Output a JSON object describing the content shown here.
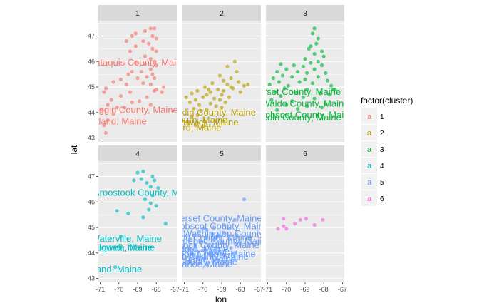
{
  "chart_data": {
    "type": "scatter",
    "xlabel": "lon",
    "ylabel": "lat",
    "xlim": [
      -71.1,
      -66.9
    ],
    "ylim": [
      42.85,
      47.6
    ],
    "x_ticks": [
      -71,
      -70,
      -69,
      -68,
      -67
    ],
    "y_ticks": [
      43,
      44,
      45,
      46,
      47
    ],
    "facet_rows": 2,
    "facet_cols": 3,
    "legend": {
      "title": "factor(cluster)",
      "position": "right",
      "glyph": "a",
      "entries": [
        "1",
        "2",
        "3",
        "4",
        "5",
        "6"
      ]
    },
    "colors": {
      "1": "#F8766D",
      "2": "#B79F00",
      "3": "#00BA38",
      "4": "#00BFC4",
      "5": "#619CFF",
      "6": "#F564E3"
    },
    "facets": [
      {
        "label": "1",
        "points": [
          [
            -68.3,
            47.3
          ],
          [
            -68.1,
            47.3
          ],
          [
            -68.6,
            47.2
          ],
          [
            -69.1,
            47.1
          ],
          [
            -69.3,
            47.0
          ],
          [
            -68.2,
            47.0
          ],
          [
            -68.0,
            46.9
          ],
          [
            -68.7,
            46.8
          ],
          [
            -68.4,
            46.7
          ],
          [
            -69.1,
            46.6
          ],
          [
            -68.2,
            46.5
          ],
          [
            -68.0,
            46.4
          ],
          [
            -69.4,
            46.4
          ],
          [
            -68.6,
            46.2
          ],
          [
            -68.3,
            46.1
          ],
          [
            -68.1,
            46.0
          ],
          [
            -69.1,
            45.95
          ],
          [
            -68.6,
            45.9
          ],
          [
            -68.0,
            45.85
          ],
          [
            -68.3,
            45.7
          ],
          [
            -68.8,
            45.6
          ],
          [
            -69.3,
            45.6
          ],
          [
            -68.2,
            45.5
          ],
          [
            -68.5,
            45.4
          ],
          [
            -69.5,
            45.5
          ],
          [
            -68.1,
            45.35
          ],
          [
            -69.0,
            45.35
          ],
          [
            -69.9,
            45.3
          ],
          [
            -70.3,
            45.2
          ],
          [
            -68.7,
            45.15
          ],
          [
            -68.3,
            45.1
          ],
          [
            -69.6,
            45.1
          ],
          [
            -70.7,
            44.95
          ],
          [
            -68.1,
            44.85
          ],
          [
            -69.4,
            44.8
          ],
          [
            -70.8,
            44.8
          ],
          [
            -67.7,
            44.8
          ],
          [
            -69.9,
            44.65
          ],
          [
            -68.5,
            44.6
          ],
          [
            -70.4,
            44.5
          ],
          [
            -68.9,
            44.45
          ],
          [
            -69.3,
            44.4
          ],
          [
            -70.6,
            44.3
          ],
          [
            -70.1,
            44.2
          ],
          [
            -69.7,
            44.2
          ],
          [
            -68.3,
            44.3
          ],
          [
            -70.3,
            43.95
          ],
          [
            -70.6,
            43.7
          ],
          [
            -70.8,
            43.5
          ],
          [
            -70.7,
            43.2
          ],
          [
            -68.0,
            44.9
          ],
          [
            -67.6,
            45.0
          ],
          [
            -69.6,
            46.8
          ],
          [
            -70.9,
            44.1
          ]
        ],
        "labels": [
          {
            "text": "Piscataquis County, Maine",
            "x": -69.3,
            "y": 45.95
          },
          {
            "text": "Androscoggin County, Maine",
            "x": -70.0,
            "y": 44.1
          },
          {
            "text": "Portland, Maine",
            "x": -70.25,
            "y": 43.65
          }
        ]
      },
      {
        "label": "2",
        "points": [
          [
            -68.3,
            46.0
          ],
          [
            -68.7,
            45.8
          ],
          [
            -68.2,
            45.6
          ],
          [
            -69.1,
            45.45
          ],
          [
            -68.5,
            45.35
          ],
          [
            -68.9,
            45.25
          ],
          [
            -68.1,
            45.2
          ],
          [
            -69.5,
            45.15
          ],
          [
            -68.7,
            45.1
          ],
          [
            -67.8,
            45.05
          ],
          [
            -69.9,
            45.0
          ],
          [
            -68.4,
            44.95
          ],
          [
            -69.2,
            44.9
          ],
          [
            -70.3,
            44.85
          ],
          [
            -68.9,
            44.85
          ],
          [
            -69.6,
            44.8
          ],
          [
            -68.0,
            44.8
          ],
          [
            -70.6,
            44.75
          ],
          [
            -69.0,
            44.7
          ],
          [
            -69.8,
            44.7
          ],
          [
            -70.0,
            44.6
          ],
          [
            -68.6,
            44.6
          ],
          [
            -69.4,
            44.55
          ],
          [
            -70.4,
            44.5
          ],
          [
            -69.1,
            44.5
          ],
          [
            -70.7,
            44.4
          ],
          [
            -68.8,
            44.4
          ],
          [
            -69.6,
            44.35
          ],
          [
            -70.2,
            44.3
          ],
          [
            -69.3,
            44.25
          ],
          [
            -70.5,
            44.15
          ],
          [
            -69.0,
            44.2
          ],
          [
            -69.8,
            44.1
          ],
          [
            -70.1,
            44.05
          ],
          [
            -70.3,
            43.9
          ],
          [
            -70.6,
            43.85
          ],
          [
            -70.8,
            43.6
          ],
          [
            -70.4,
            43.5
          ],
          [
            -70.0,
            43.45
          ],
          [
            -69.7,
            44.9
          ],
          [
            -68.5,
            45.0
          ],
          [
            -67.6,
            45.1
          ],
          [
            -70.9,
            44.6
          ]
        ],
        "labels": [
          {
            "text": "Franklin County, Maine",
            "x": -69.7,
            "y": 44.0
          },
          {
            "text": "Auburn, Maine",
            "x": -70.3,
            "y": 43.7
          },
          {
            "text": "Brunswick, Maine",
            "x": -70.05,
            "y": 43.6
          },
          {
            "text": "Sanford, Maine",
            "x": -70.7,
            "y": 43.4
          }
        ]
      },
      {
        "label": "3",
        "points": [
          [
            -68.5,
            47.3
          ],
          [
            -68.6,
            47.1
          ],
          [
            -68.3,
            46.9
          ],
          [
            -68.4,
            46.7
          ],
          [
            -68.8,
            46.5
          ],
          [
            -68.1,
            46.4
          ],
          [
            -68.5,
            46.3
          ],
          [
            -68.0,
            46.2
          ],
          [
            -69.0,
            46.1
          ],
          [
            -68.3,
            46.0
          ],
          [
            -68.7,
            45.95
          ],
          [
            -70.3,
            45.9
          ],
          [
            -69.6,
            45.85
          ],
          [
            -68.1,
            45.85
          ],
          [
            -69.1,
            45.8
          ],
          [
            -70.0,
            45.7
          ],
          [
            -68.5,
            45.7
          ],
          [
            -70.5,
            45.6
          ],
          [
            -69.4,
            45.6
          ],
          [
            -68.9,
            45.55
          ],
          [
            -67.9,
            45.55
          ],
          [
            -70.2,
            45.45
          ],
          [
            -69.7,
            45.4
          ],
          [
            -68.3,
            45.4
          ],
          [
            -70.7,
            45.35
          ],
          [
            -69.0,
            45.3
          ],
          [
            -67.8,
            45.25
          ],
          [
            -70.4,
            45.2
          ],
          [
            -69.3,
            45.2
          ],
          [
            -68.6,
            45.15
          ],
          [
            -70.9,
            45.1
          ],
          [
            -69.9,
            45.05
          ],
          [
            -67.6,
            45.05
          ],
          [
            -70.1,
            44.95
          ],
          [
            -68.9,
            44.9
          ],
          [
            -67.5,
            44.9
          ],
          [
            -70.6,
            44.8
          ],
          [
            -69.5,
            44.8
          ],
          [
            -68.2,
            44.75
          ],
          [
            -70.3,
            44.65
          ],
          [
            -67.7,
            44.7
          ],
          [
            -69.1,
            44.6
          ],
          [
            -70.8,
            44.5
          ],
          [
            -68.5,
            44.55
          ],
          [
            -69.7,
            44.45
          ],
          [
            -70.0,
            44.3
          ],
          [
            -68.9,
            44.25
          ],
          [
            -69.4,
            44.15
          ],
          [
            -70.5,
            44.1
          ],
          [
            -68.1,
            44.2
          ],
          [
            -67.9,
            44.35
          ],
          [
            -67.4,
            44.9
          ],
          [
            -68.7,
            46.6
          ]
        ],
        "labels": [
          {
            "text": "Somerset County, Maine",
            "x": -69.8,
            "y": 44.8
          },
          {
            "text": "Waldo County, Maine",
            "x": -69.0,
            "y": 44.35
          },
          {
            "text": "Penobscot County, Maine",
            "x": -69.2,
            "y": 43.9
          },
          {
            "text": "Lincoln County, Maine",
            "x": -69.5,
            "y": 43.8
          }
        ]
      },
      {
        "label": "4",
        "points": [
          [
            -68.7,
            47.2
          ],
          [
            -69.0,
            47.15
          ],
          [
            -68.2,
            47.0
          ],
          [
            -68.8,
            46.9
          ],
          [
            -68.1,
            46.85
          ],
          [
            -69.2,
            46.85
          ],
          [
            -68.5,
            46.75
          ],
          [
            -68.3,
            46.6
          ],
          [
            -67.9,
            46.55
          ],
          [
            -68.2,
            46.25
          ],
          [
            -68.6,
            46.1
          ],
          [
            -68.3,
            45.95
          ],
          [
            -68.0,
            45.85
          ],
          [
            -68.4,
            45.7
          ],
          [
            -69.5,
            45.55
          ],
          [
            -70.1,
            45.65
          ],
          [
            -68.7,
            45.4
          ],
          [
            -67.5,
            45.15
          ],
          [
            -69.9,
            44.65
          ],
          [
            -70.2,
            43.45
          ]
        ],
        "labels": [
          {
            "text": "Aroostook County, Maine",
            "x": -68.6,
            "y": 46.35
          },
          {
            "text": "Waterville, Maine",
            "x": -69.6,
            "y": 44.55
          },
          {
            "text": "Hallowell, Maine",
            "x": -70.0,
            "y": 44.2
          },
          {
            "text": "Augusta, Maine",
            "x": -69.8,
            "y": 44.2
          },
          {
            "text": "Portland, Maine",
            "x": -70.5,
            "y": 43.35
          }
        ]
      },
      {
        "label": "5",
        "points": [
          [
            -67.8,
            46.1
          ],
          [
            -68.3,
            45.3
          ],
          [
            -68.9,
            45.1
          ],
          [
            -69.4,
            45.0
          ],
          [
            -68.6,
            44.95
          ],
          [
            -69.8,
            44.9
          ],
          [
            -70.2,
            44.85
          ],
          [
            -68.9,
            44.8
          ],
          [
            -69.5,
            44.75
          ],
          [
            -70.5,
            44.7
          ],
          [
            -68.2,
            44.7
          ],
          [
            -69.1,
            44.65
          ],
          [
            -69.8,
            44.6
          ],
          [
            -70.7,
            44.55
          ],
          [
            -68.6,
            44.55
          ],
          [
            -69.4,
            44.5
          ],
          [
            -70.1,
            44.45
          ],
          [
            -68.0,
            44.4
          ],
          [
            -69.0,
            44.4
          ],
          [
            -70.4,
            44.3
          ],
          [
            -69.7,
            44.3
          ],
          [
            -70.8,
            44.2
          ],
          [
            -69.3,
            44.2
          ],
          [
            -68.5,
            44.2
          ],
          [
            -70.0,
            44.1
          ],
          [
            -70.6,
            44.0
          ],
          [
            -69.6,
            44.0
          ],
          [
            -69.0,
            43.95
          ],
          [
            -70.3,
            43.85
          ],
          [
            -69.9,
            43.8
          ],
          [
            -70.7,
            43.7
          ],
          [
            -70.2,
            43.6
          ],
          [
            -69.8,
            43.55
          ],
          [
            -68.3,
            44.0
          ],
          [
            -69.2,
            44.7
          ],
          [
            -70.0,
            44.95
          ],
          [
            -69.5,
            43.9
          ],
          [
            -70.5,
            43.9
          ]
        ],
        "labels": [
          {
            "text": "Somerset County, Maine",
            "x": -69.55,
            "y": 45.35
          },
          {
            "text": "Penobscot County, Maine",
            "x": -69.3,
            "y": 45.05
          },
          {
            "text": "Washington County",
            "x": -68.9,
            "y": 44.75
          },
          {
            "text": "Waldo County, Maine",
            "x": -69.7,
            "y": 44.6
          },
          {
            "text": "Kennebec County, Maine",
            "x": -69.2,
            "y": 44.45
          },
          {
            "text": "Hancock County, Maine",
            "x": -69.6,
            "y": 44.3
          },
          {
            "text": "Oxford, Maine",
            "x": -70.2,
            "y": 44.15
          },
          {
            "text": "Bath, Maine",
            "x": -69.9,
            "y": 44.05
          },
          {
            "text": "Knox County, Maine",
            "x": -69.4,
            "y": 43.95
          },
          {
            "text": "Lincoln County, Maine",
            "x": -70.0,
            "y": 43.85
          },
          {
            "text": "Cumberland, Maine",
            "x": -70.4,
            "y": 43.75
          },
          {
            "text": "York County, Maine",
            "x": -70.3,
            "y": 43.65
          },
          {
            "text": "Sagadahoc, Maine",
            "x": -70.5,
            "y": 43.55
          }
        ]
      },
      {
        "label": "6",
        "points": [
          [
            -70.45,
            44.95
          ],
          [
            -70.15,
            45.05
          ],
          [
            -70.15,
            45.35
          ],
          [
            -69.55,
            45.15
          ],
          [
            -69.25,
            45.3
          ],
          [
            -68.95,
            45.35
          ],
          [
            -68.5,
            45.1
          ],
          [
            -68.05,
            45.3
          ],
          [
            -70.0,
            44.95
          ]
        ],
        "labels": []
      }
    ]
  }
}
